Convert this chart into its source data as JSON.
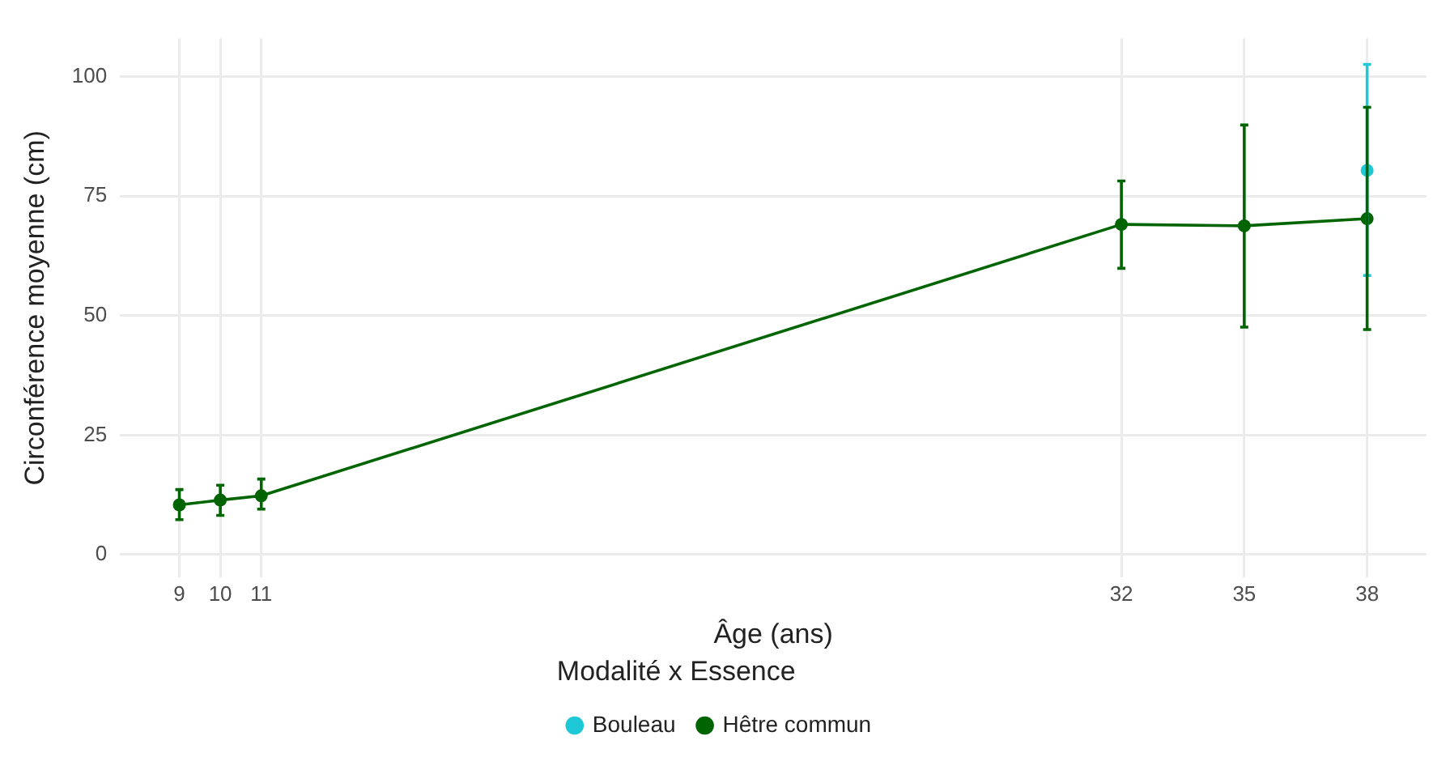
{
  "chart_data": {
    "type": "line",
    "xlabel": "Âge (ans)",
    "ylabel": "Circonférence moyenne (cm)",
    "legend_title": "Modalité x Essence",
    "legend": "bottom",
    "grid": true,
    "marker": "circle",
    "line_style": "solid",
    "xlim": [
      7.55,
      39.45
    ],
    "xticks": [
      9,
      10,
      11,
      32,
      35,
      38
    ],
    "ylim": [
      -4.8,
      108
    ],
    "yticks": [
      0,
      25,
      50,
      75,
      100
    ],
    "series": [
      {
        "name": "Bouleau",
        "color": "#1ec8d6",
        "x": [
          38
        ],
        "values": [
          80.4
        ],
        "errors": [
          [
            58.4,
            102.6
          ]
        ]
      },
      {
        "name": "Hêtre commun",
        "color": "#006400",
        "x": [
          9,
          10,
          11,
          32,
          35,
          38
        ],
        "values": [
          10.4,
          11.4,
          12.3,
          69.1,
          68.8,
          70.3
        ],
        "errors": [
          [
            7.3,
            13.6
          ],
          [
            8.2,
            14.5
          ],
          [
            9.5,
            15.8
          ],
          [
            59.9,
            78.2
          ],
          [
            47.6,
            89.9
          ],
          [
            47.1,
            93.6
          ]
        ]
      }
    ]
  }
}
